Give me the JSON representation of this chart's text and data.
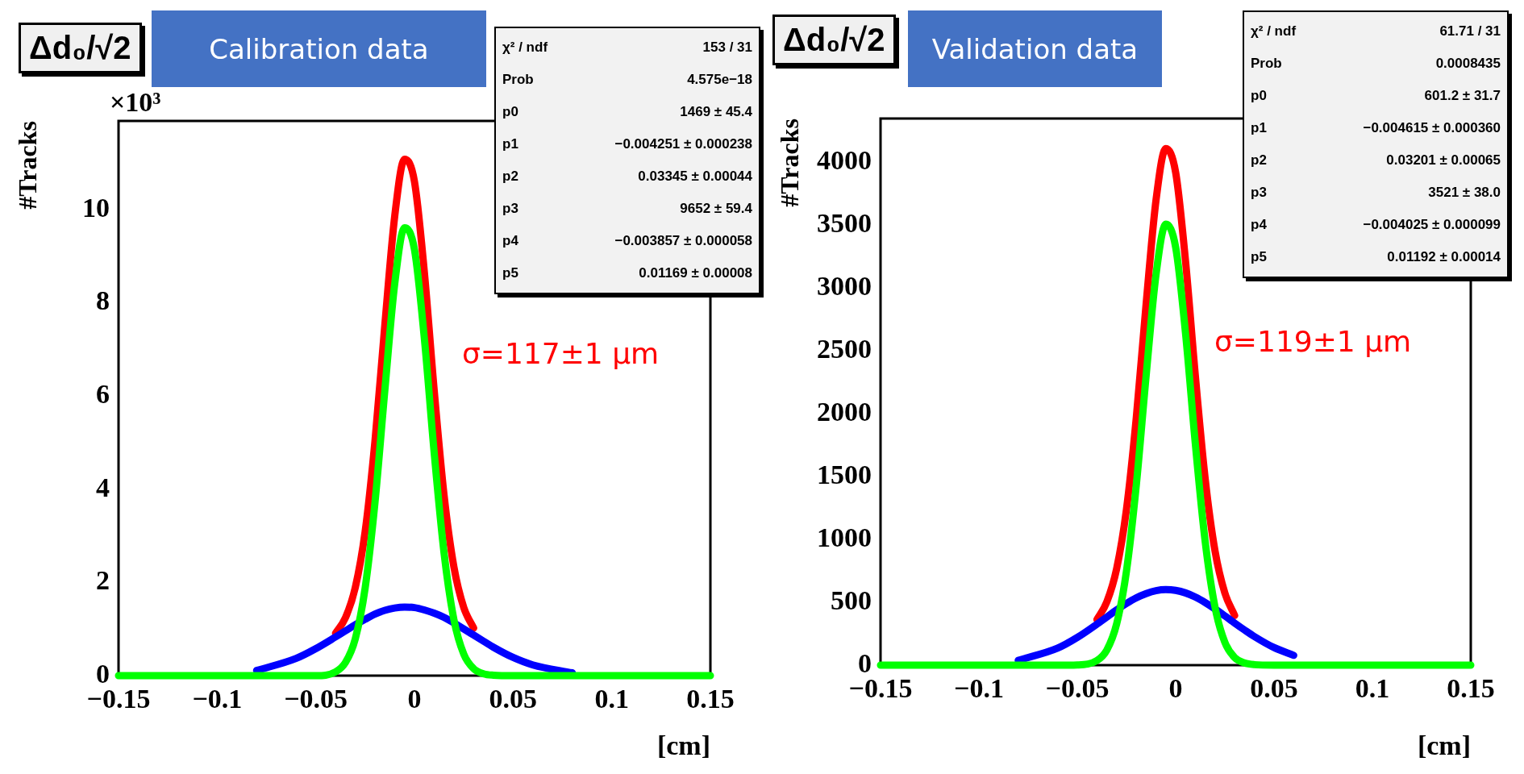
{
  "chart_data": [
    {
      "type": "line",
      "title": "Calibration data",
      "ylabel": "#Tracks",
      "xlabel": "[cm]",
      "xlim": [
        -0.15,
        0.15
      ],
      "xticks": [
        -0.15,
        -0.1,
        -0.05,
        0,
        0.05,
        0.1,
        0.15
      ],
      "ylim": [
        0,
        11.9
      ],
      "yticks": [
        0,
        2,
        4,
        6,
        8,
        10
      ],
      "grid": false,
      "legend": false,
      "marker": "none",
      "line_style": "solid",
      "x": [
        -0.15,
        -0.12,
        -0.1,
        -0.08,
        -0.06,
        -0.05,
        -0.04,
        -0.035,
        -0.03,
        -0.025,
        -0.02,
        -0.015,
        -0.01,
        -0.005,
        0,
        0.005,
        0.01,
        0.015,
        0.02,
        0.025,
        0.03,
        0.035,
        0.04,
        0.05,
        0.06,
        0.08,
        0.1,
        0.12,
        0.15
      ],
      "series": [
        {
          "color": "#ff0000",
          "values": [
            null,
            null,
            null,
            null,
            null,
            null,
            0.91,
            1.24,
            1.89,
            3.09,
            5.04,
            7.53,
            9.86,
            11.08,
            10.6,
            8.66,
            6.12,
            3.87,
            2.33,
            1.46,
            1.02,
            null,
            null,
            null,
            null,
            null,
            null,
            null,
            null
          ]
        },
        {
          "color": "#0000ff",
          "values": [
            null,
            null,
            null,
            0.11,
            0.37,
            0.58,
            0.83,
            0.96,
            1.09,
            1.21,
            1.32,
            1.4,
            1.45,
            1.47,
            1.46,
            1.41,
            1.34,
            1.25,
            1.13,
            1,
            0.87,
            0.74,
            0.61,
            0.39,
            0.23,
            0.06,
            null,
            null,
            null
          ]
        },
        {
          "color": "#00ff00",
          "values": [
            0,
            0,
            0,
            0,
            0,
            0,
            0.08,
            0.28,
            0.79,
            1.88,
            3.72,
            6.13,
            8.41,
            9.61,
            9.14,
            7.24,
            4.78,
            2.63,
            1.2,
            0.46,
            0.15,
            0.04,
            0.01,
            0,
            0,
            0,
            0,
            0,
            0
          ]
        }
      ],
      "annotations": [
        "Δd₀/√2",
        "σ=117±1 µm",
        "χ² / ndf",
        "153 / 31",
        "Prob",
        "4.575e−18",
        "p0",
        "1469 ± 45.4",
        "p1",
        "−0.004251 ± 0.000238",
        "p2",
        "0.03345 ± 0.00044",
        "p3",
        "9652 ± 59.4",
        "p4",
        "−0.003857 ± 0.000058",
        "p5",
        "0.01169 ± 0.00008",
        "×10³"
      ]
    },
    {
      "type": "line",
      "title": "Validation data",
      "ylabel": "#Tracks",
      "xlabel": "[cm]",
      "xlim": [
        -0.15,
        0.15
      ],
      "xticks": [
        -0.15,
        -0.1,
        -0.05,
        0,
        0.05,
        0.1,
        0.15
      ],
      "ylim": [
        0,
        4350
      ],
      "yticks": [
        0,
        500,
        1000,
        1500,
        2000,
        2500,
        3000,
        3500,
        4000
      ],
      "grid": false,
      "legend": false,
      "marker": "none",
      "line_style": "solid",
      "x": [
        -0.15,
        -0.12,
        -0.1,
        -0.08,
        -0.06,
        -0.05,
        -0.04,
        -0.035,
        -0.03,
        -0.025,
        -0.02,
        -0.015,
        -0.01,
        -0.005,
        0,
        0.005,
        0.01,
        0.015,
        0.02,
        0.025,
        0.03,
        0.035,
        0.04,
        0.05,
        0.06,
        0.08,
        0.1,
        0.12,
        0.15
      ],
      "series": [
        {
          "color": "#ff0000",
          "values": [
            null,
            null,
            null,
            null,
            null,
            null,
            363,
            503,
            767,
            1240,
            1970,
            2875,
            3698,
            4111,
            3921,
            3218,
            2304,
            1484,
            909,
            574,
            395,
            null,
            null,
            null,
            null,
            null,
            null,
            null,
            null
          ]
        },
        {
          "color": "#0000ff",
          "values": [
            null,
            null,
            null,
            38,
            135,
            220,
            326,
            383,
            439,
            491,
            536,
            570,
            593,
            601,
            595,
            575,
            542,
            498,
            447,
            392,
            335,
            280,
            228,
            140,
            78,
            null,
            null,
            null,
            null
          ]
        },
        {
          "color": "#00ff00",
          "values": [
            0,
            0,
            0,
            0,
            0,
            2,
            37,
            120,
            328,
            749,
            1434,
            2305,
            3106,
            3509,
            3326,
            2644,
            1762,
            985,
            462,
            182,
            60,
            17,
            4,
            0,
            0,
            0,
            0,
            0,
            0
          ]
        }
      ],
      "annotations": [
        "Δd₀/√2",
        "σ=119±1 µm",
        "χ² / ndf",
        "61.71 / 31",
        "Prob",
        "0.0008435",
        "p0",
        "601.2 ± 31.7",
        "p1",
        "−0.004615 ± 0.000360",
        "p2",
        "0.03201 ± 0.00065",
        "p3",
        "3521 ± 38.0",
        "p4",
        "−0.004025 ± 0.000099",
        "p5",
        "0.01192 ± 0.00014"
      ]
    }
  ]
}
